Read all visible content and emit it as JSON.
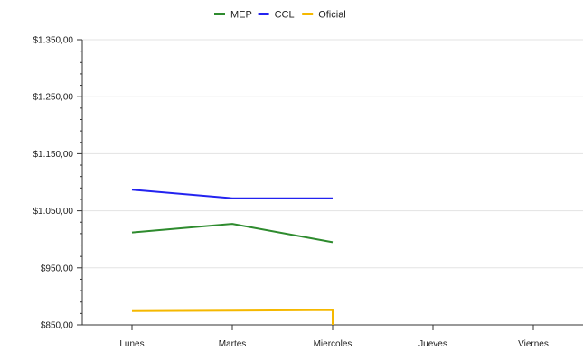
{
  "chart_data": {
    "type": "line",
    "categories": [
      "Lunes",
      "Martes",
      "Miercoles",
      "Jueves",
      "Viernes"
    ],
    "series": [
      {
        "name": "MEP",
        "color": "#2e8b2e",
        "values": [
          1012,
          1027,
          995,
          null,
          null
        ]
      },
      {
        "name": "CCL",
        "color": "#2323f0",
        "values": [
          1087,
          1072,
          1072,
          null,
          null
        ]
      },
      {
        "name": "Oficial",
        "color": "#f5b800",
        "values": [
          874,
          875,
          876,
          null,
          null
        ]
      }
    ],
    "ylim": [
      850,
      1350
    ],
    "yticks": [
      850,
      950,
      1050,
      1150,
      1250,
      1350
    ],
    "ytick_labels": [
      "$850,00",
      "$950,00",
      "$1.050,00",
      "$1.150,00",
      "$1.250,00",
      "$1.350,00"
    ],
    "grid": "horizontal",
    "legend_position": "top-center",
    "title": "",
    "xlabel": "",
    "ylabel": ""
  }
}
